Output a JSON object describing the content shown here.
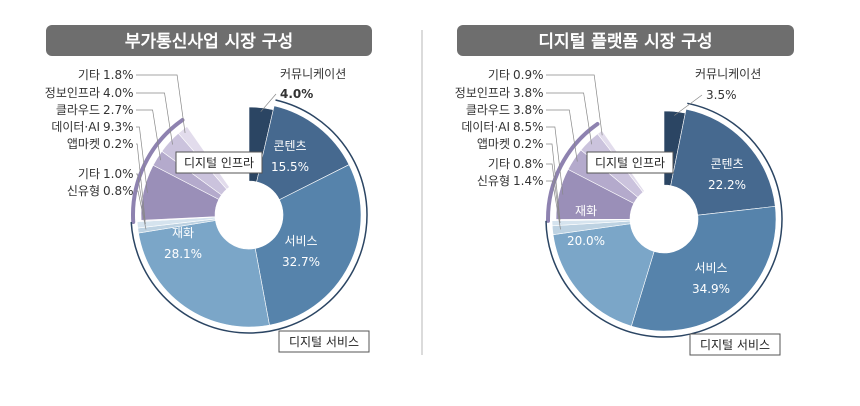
{
  "chart_data": [
    {
      "type": "pie",
      "title": "부가통신사업 시장 구성",
      "group_labels": {
        "infra": "디지털 인프라",
        "service": "디지털 서비스"
      },
      "slices": [
        {
          "key": "comm",
          "label": "커뮤니케이션",
          "value": 4.0,
          "display": "4.0%",
          "color": "#2b4563"
        },
        {
          "key": "content",
          "label": "콘텐츠",
          "value": 15.5,
          "display": "15.5%",
          "color": "#46698f"
        },
        {
          "key": "service",
          "label": "서비스",
          "value": 32.7,
          "display": "32.7%",
          "color": "#5683ab"
        },
        {
          "key": "goods",
          "label": "재화",
          "value": 28.1,
          "display": "28.1%",
          "color": "#7ba6c8"
        },
        {
          "key": "telco",
          "label": "신유형",
          "value": 0.8,
          "display": "0.8%",
          "color": "#bdd2e2"
        },
        {
          "key": "svc_etc",
          "label": "기타",
          "value": 1.0,
          "display": "1.0%",
          "color": "#d5e3ee"
        },
        {
          "key": "appmkt",
          "label": "앱마켓",
          "value": 0.2,
          "display": "0.2%",
          "color": "#ece8f3"
        },
        {
          "key": "data_ai",
          "label": "데이터·AI",
          "value": 9.3,
          "display": "9.3%",
          "color": "#9a8fb8"
        },
        {
          "key": "cloud",
          "label": "클라우드",
          "value": 2.7,
          "display": "2.7%",
          "color": "#b4aacc"
        },
        {
          "key": "infosec",
          "label": "정보인프라",
          "value": 4.0,
          "display": "4.0%",
          "color": "#cbc3dd"
        },
        {
          "key": "inf_etc",
          "label": "기타",
          "value": 1.8,
          "display": "1.8%",
          "color": "#e2dcec"
        }
      ]
    },
    {
      "type": "pie",
      "title": "디지털 플랫폼 시장 구성",
      "group_labels": {
        "infra": "디지털 인프라",
        "service": "디지털 서비스"
      },
      "slices": [
        {
          "key": "comm",
          "label": "커뮤니케이션",
          "value": 3.5,
          "display": "3.5%",
          "color": "#2b4563"
        },
        {
          "key": "content",
          "label": "콘텐츠",
          "value": 22.2,
          "display": "22.2%",
          "color": "#46698f"
        },
        {
          "key": "service",
          "label": "서비스",
          "value": 34.9,
          "display": "34.9%",
          "color": "#5683ab"
        },
        {
          "key": "goods",
          "label": "재화",
          "value": 20.0,
          "display": "20.0%",
          "color": "#7ba6c8"
        },
        {
          "key": "telco",
          "label": "신유형",
          "value": 1.4,
          "display": "1.4%",
          "color": "#bdd2e2"
        },
        {
          "key": "svc_etc",
          "label": "기타",
          "value": 0.8,
          "display": "0.8%",
          "color": "#d5e3ee"
        },
        {
          "key": "appmkt",
          "label": "앱마켓",
          "value": 0.2,
          "display": "0.2%",
          "color": "#ece8f3"
        },
        {
          "key": "data_ai",
          "label": "데이터·AI",
          "value": 8.5,
          "display": "8.5%",
          "color": "#9a8fb8"
        },
        {
          "key": "cloud",
          "label": "클라우드",
          "value": 3.8,
          "display": "3.8%",
          "color": "#b4aacc"
        },
        {
          "key": "infosec",
          "label": "정보인프라",
          "value": 3.8,
          "display": "3.8%",
          "color": "#cbc3dd"
        },
        {
          "key": "inf_etc",
          "label": "기타",
          "value": 0.9,
          "display": "0.9%",
          "color": "#e2dcec"
        }
      ]
    }
  ],
  "colors": {
    "title_bg": "#6e6e6e",
    "divider": "#cfcfcf",
    "accent_line": "#2b4563",
    "infra_line": "#8e82b0"
  }
}
